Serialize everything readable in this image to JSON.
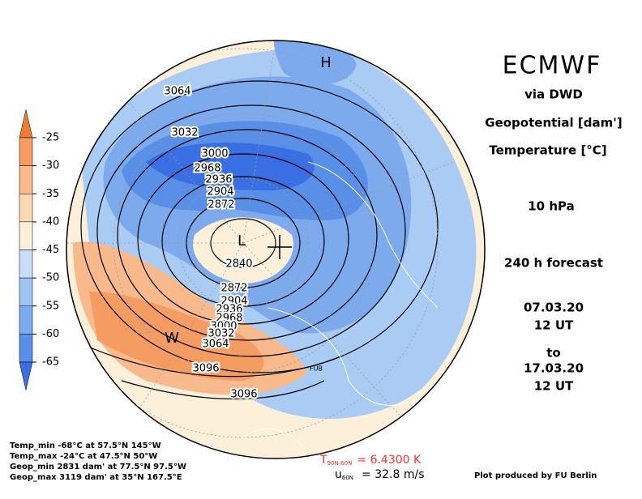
{
  "colorbar": {
    "ticks": [
      -25,
      -30,
      -35,
      -40,
      -45,
      -50,
      -55,
      -60,
      -65
    ],
    "colors": [
      "#f07a38",
      "#f49c62",
      "#f8ba8c",
      "#fbd7b4",
      "#fdf0da",
      "#c8def8",
      "#a1c5f3",
      "#7caaed",
      "#5a8fe8",
      "#3a6fe4"
    ]
  },
  "header": {
    "title": "ECMWF",
    "source": "via DWD",
    "field1": "Geopotential [dam']",
    "field2": "Temperature [°C]",
    "level": "10 hPa",
    "forecast": "240 h forecast",
    "start_date": "07.03.20",
    "start_time": "12 UT",
    "to": "to",
    "end_date": "17.03.20",
    "end_time": "12 UT"
  },
  "map": {
    "high": "H",
    "low": "L",
    "warm": "W",
    "station": "FUB",
    "contour_labels": [
      "3064",
      "3032",
      "3000",
      "2968",
      "2936",
      "2904",
      "2872",
      "2840",
      "2872",
      "2904",
      "2936",
      "2968",
      "3000",
      "3032",
      "3064",
      "3096",
      "3096"
    ]
  },
  "stats": {
    "lines": [
      "Temp_min -68°C at 57.5°N 145°W",
      "Temp_max -24°C at 47.5°N 50°W",
      "Geop_min 2831 dam' at 77.5°N 97.5°W",
      "Geop_max 3119 dam' at 35°N 167.5°E"
    ],
    "t_symbol": "T",
    "t_sub": "90N-60N",
    "t_value": "= 6.4300 K",
    "u_symbol": "u",
    "u_sub": "60N",
    "u_value": "= 32.8 m/s"
  },
  "footer": "Plot produced by FU Berlin"
}
